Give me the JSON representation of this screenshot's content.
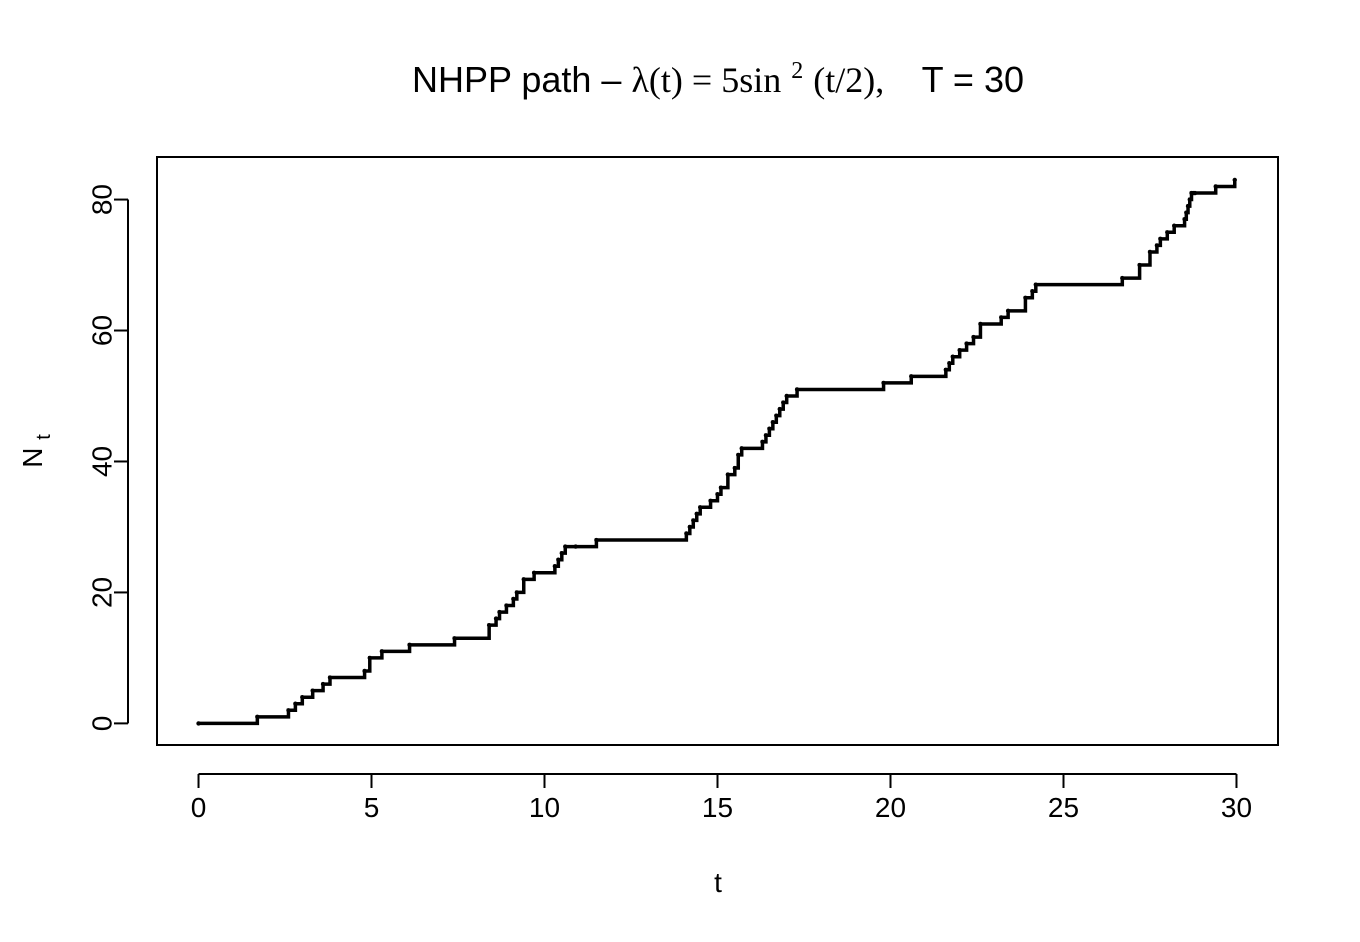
{
  "chart_data": {
    "type": "line",
    "step": true,
    "title_parts": {
      "prefix": "NHPP path – ",
      "lambda": "λ(t) = 5sin",
      "exponent": "2",
      "suffix": "(t/2),",
      "horizon": "T = 30"
    },
    "xlabel": "t",
    "ylabel_main": "N",
    "ylabel_sub": "t",
    "xlim": [
      -1.2,
      31.2
    ],
    "ylim": [
      -3.3,
      86.5
    ],
    "xticks": [
      0,
      5,
      10,
      15,
      20,
      25,
      30
    ],
    "yticks": [
      0,
      20,
      40,
      60,
      80
    ],
    "line_color": "#000000",
    "series": [
      {
        "x": [
          0,
          1.7,
          2.6,
          2.8,
          3.0,
          3.3,
          3.6,
          3.8,
          4.8,
          4.95,
          5.3,
          6.1,
          7.4,
          8.4,
          8.6,
          8.7,
          8.9,
          9.1,
          9.2,
          9.4,
          9.7,
          10.3,
          10.4,
          10.5,
          10.6,
          10.9,
          11.5,
          14.1,
          14.2,
          14.3,
          14.4,
          14.5,
          14.8,
          15.0,
          15.1,
          15.3,
          15.5,
          15.6,
          15.7,
          16.3,
          16.4,
          16.5,
          16.6,
          16.7,
          16.8,
          16.9,
          17.0,
          17.3,
          19.8,
          20.6,
          21.6,
          21.7,
          21.8,
          22.0,
          22.2,
          22.4,
          22.6,
          23.2,
          23.4,
          23.9,
          24.1,
          24.2,
          26.7,
          27.2,
          27.5,
          27.7,
          27.8,
          28.0,
          28.2,
          28.5,
          28.55,
          28.6,
          28.65,
          28.7,
          28.75,
          28.8,
          29.4,
          29.95
        ],
        "y": [
          0,
          1,
          2,
          3,
          4,
          5,
          6,
          7,
          8,
          10,
          11,
          12,
          13,
          15,
          16,
          17,
          18,
          19,
          20,
          22,
          23,
          24,
          25,
          26,
          27,
          27,
          28,
          29,
          30,
          31,
          32,
          33,
          34,
          35,
          36,
          38,
          39,
          41,
          42,
          43,
          44,
          45,
          46,
          47,
          48,
          49,
          50,
          51,
          52,
          53,
          54,
          55,
          56,
          57,
          58,
          59,
          61,
          62,
          63,
          65,
          66,
          67,
          68,
          70,
          72,
          73,
          74,
          75,
          76,
          77,
          78,
          79,
          80,
          81,
          81,
          81,
          82,
          83
        ]
      }
    ]
  }
}
